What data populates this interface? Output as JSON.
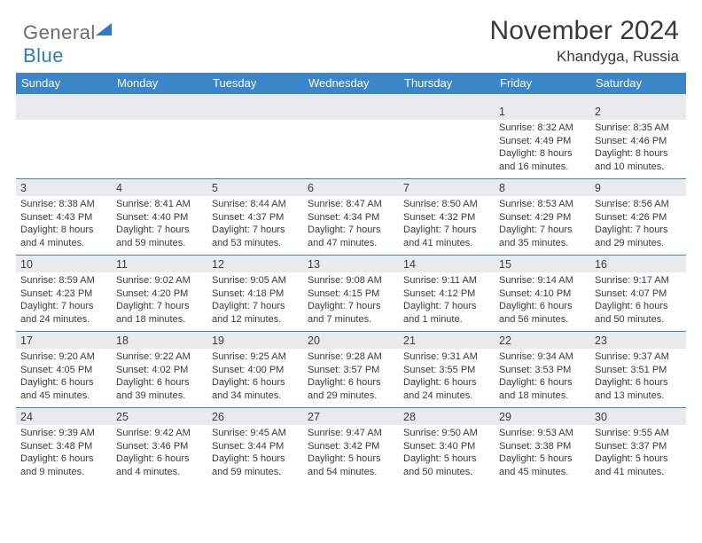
{
  "brand": {
    "part1": "General",
    "part2": "Blue"
  },
  "title": "November 2024",
  "location": "Khandyga, Russia",
  "colors": {
    "header_bg": "#3b86c6",
    "header_text": "#ffffff",
    "daynum_bg": "#e8eaec",
    "body_bg": "#ffffff",
    "text": "#3a3a3c",
    "logo_gray": "#6c6c6c",
    "logo_blue": "#2f7bc0"
  },
  "dow": [
    "Sunday",
    "Monday",
    "Tuesday",
    "Wednesday",
    "Thursday",
    "Friday",
    "Saturday"
  ],
  "weeks": [
    [
      {
        "day": "",
        "lines": [
          "",
          "",
          "",
          ""
        ]
      },
      {
        "day": "",
        "lines": [
          "",
          "",
          "",
          ""
        ]
      },
      {
        "day": "",
        "lines": [
          "",
          "",
          "",
          ""
        ]
      },
      {
        "day": "",
        "lines": [
          "",
          "",
          "",
          ""
        ]
      },
      {
        "day": "",
        "lines": [
          "",
          "",
          "",
          ""
        ]
      },
      {
        "day": "1",
        "lines": [
          "Sunrise: 8:32 AM",
          "Sunset: 4:49 PM",
          "Daylight: 8 hours",
          "and 16 minutes."
        ]
      },
      {
        "day": "2",
        "lines": [
          "Sunrise: 8:35 AM",
          "Sunset: 4:46 PM",
          "Daylight: 8 hours",
          "and 10 minutes."
        ]
      }
    ],
    [
      {
        "day": "3",
        "lines": [
          "Sunrise: 8:38 AM",
          "Sunset: 4:43 PM",
          "Daylight: 8 hours",
          "and 4 minutes."
        ]
      },
      {
        "day": "4",
        "lines": [
          "Sunrise: 8:41 AM",
          "Sunset: 4:40 PM",
          "Daylight: 7 hours",
          "and 59 minutes."
        ]
      },
      {
        "day": "5",
        "lines": [
          "Sunrise: 8:44 AM",
          "Sunset: 4:37 PM",
          "Daylight: 7 hours",
          "and 53 minutes."
        ]
      },
      {
        "day": "6",
        "lines": [
          "Sunrise: 8:47 AM",
          "Sunset: 4:34 PM",
          "Daylight: 7 hours",
          "and 47 minutes."
        ]
      },
      {
        "day": "7",
        "lines": [
          "Sunrise: 8:50 AM",
          "Sunset: 4:32 PM",
          "Daylight: 7 hours",
          "and 41 minutes."
        ]
      },
      {
        "day": "8",
        "lines": [
          "Sunrise: 8:53 AM",
          "Sunset: 4:29 PM",
          "Daylight: 7 hours",
          "and 35 minutes."
        ]
      },
      {
        "day": "9",
        "lines": [
          "Sunrise: 8:56 AM",
          "Sunset: 4:26 PM",
          "Daylight: 7 hours",
          "and 29 minutes."
        ]
      }
    ],
    [
      {
        "day": "10",
        "lines": [
          "Sunrise: 8:59 AM",
          "Sunset: 4:23 PM",
          "Daylight: 7 hours",
          "and 24 minutes."
        ]
      },
      {
        "day": "11",
        "lines": [
          "Sunrise: 9:02 AM",
          "Sunset: 4:20 PM",
          "Daylight: 7 hours",
          "and 18 minutes."
        ]
      },
      {
        "day": "12",
        "lines": [
          "Sunrise: 9:05 AM",
          "Sunset: 4:18 PM",
          "Daylight: 7 hours",
          "and 12 minutes."
        ]
      },
      {
        "day": "13",
        "lines": [
          "Sunrise: 9:08 AM",
          "Sunset: 4:15 PM",
          "Daylight: 7 hours",
          "and 7 minutes."
        ]
      },
      {
        "day": "14",
        "lines": [
          "Sunrise: 9:11 AM",
          "Sunset: 4:12 PM",
          "Daylight: 7 hours",
          "and 1 minute."
        ]
      },
      {
        "day": "15",
        "lines": [
          "Sunrise: 9:14 AM",
          "Sunset: 4:10 PM",
          "Daylight: 6 hours",
          "and 56 minutes."
        ]
      },
      {
        "day": "16",
        "lines": [
          "Sunrise: 9:17 AM",
          "Sunset: 4:07 PM",
          "Daylight: 6 hours",
          "and 50 minutes."
        ]
      }
    ],
    [
      {
        "day": "17",
        "lines": [
          "Sunrise: 9:20 AM",
          "Sunset: 4:05 PM",
          "Daylight: 6 hours",
          "and 45 minutes."
        ]
      },
      {
        "day": "18",
        "lines": [
          "Sunrise: 9:22 AM",
          "Sunset: 4:02 PM",
          "Daylight: 6 hours",
          "and 39 minutes."
        ]
      },
      {
        "day": "19",
        "lines": [
          "Sunrise: 9:25 AM",
          "Sunset: 4:00 PM",
          "Daylight: 6 hours",
          "and 34 minutes."
        ]
      },
      {
        "day": "20",
        "lines": [
          "Sunrise: 9:28 AM",
          "Sunset: 3:57 PM",
          "Daylight: 6 hours",
          "and 29 minutes."
        ]
      },
      {
        "day": "21",
        "lines": [
          "Sunrise: 9:31 AM",
          "Sunset: 3:55 PM",
          "Daylight: 6 hours",
          "and 24 minutes."
        ]
      },
      {
        "day": "22",
        "lines": [
          "Sunrise: 9:34 AM",
          "Sunset: 3:53 PM",
          "Daylight: 6 hours",
          "and 18 minutes."
        ]
      },
      {
        "day": "23",
        "lines": [
          "Sunrise: 9:37 AM",
          "Sunset: 3:51 PM",
          "Daylight: 6 hours",
          "and 13 minutes."
        ]
      }
    ],
    [
      {
        "day": "24",
        "lines": [
          "Sunrise: 9:39 AM",
          "Sunset: 3:48 PM",
          "Daylight: 6 hours",
          "and 9 minutes."
        ]
      },
      {
        "day": "25",
        "lines": [
          "Sunrise: 9:42 AM",
          "Sunset: 3:46 PM",
          "Daylight: 6 hours",
          "and 4 minutes."
        ]
      },
      {
        "day": "26",
        "lines": [
          "Sunrise: 9:45 AM",
          "Sunset: 3:44 PM",
          "Daylight: 5 hours",
          "and 59 minutes."
        ]
      },
      {
        "day": "27",
        "lines": [
          "Sunrise: 9:47 AM",
          "Sunset: 3:42 PM",
          "Daylight: 5 hours",
          "and 54 minutes."
        ]
      },
      {
        "day": "28",
        "lines": [
          "Sunrise: 9:50 AM",
          "Sunset: 3:40 PM",
          "Daylight: 5 hours",
          "and 50 minutes."
        ]
      },
      {
        "day": "29",
        "lines": [
          "Sunrise: 9:53 AM",
          "Sunset: 3:38 PM",
          "Daylight: 5 hours",
          "and 45 minutes."
        ]
      },
      {
        "day": "30",
        "lines": [
          "Sunrise: 9:55 AM",
          "Sunset: 3:37 PM",
          "Daylight: 5 hours",
          "and 41 minutes."
        ]
      }
    ]
  ]
}
